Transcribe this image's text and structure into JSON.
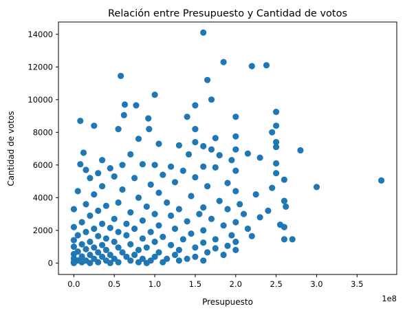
{
  "chart_data": {
    "type": "scatter",
    "title": "Relación entre Presupuesto y Cantidad de votos",
    "xlabel": "Presupuesto",
    "ylabel": "Cantidad de votos",
    "x_offset_label": "1e8",
    "xlim": [
      -0.19,
      3.99
    ],
    "ylim": [
      -700,
      14750
    ],
    "x_ticks": [
      0,
      0.5,
      1.0,
      1.5,
      2.0,
      2.5,
      3.0,
      3.5
    ],
    "x_tick_labels": [
      "0.0",
      "0.5",
      "1.0",
      "1.5",
      "2.0",
      "2.5",
      "3.0",
      "3.5"
    ],
    "y_ticks": [
      0,
      2000,
      4000,
      6000,
      8000,
      10000,
      12000,
      14000
    ],
    "y_tick_labels": [
      "0",
      "2000",
      "4000",
      "6000",
      "8000",
      "10000",
      "12000",
      "14000"
    ],
    "marker_color": "#1f77b4",
    "grid": false,
    "points": [
      [
        1.6,
        14100
      ],
      [
        1.85,
        12300
      ],
      [
        2.2,
        12050
      ],
      [
        2.38,
        12100
      ],
      [
        0.58,
        11450
      ],
      [
        1.65,
        11200
      ],
      [
        1.0,
        10300
      ],
      [
        1.7,
        10000
      ],
      [
        0.63,
        9700
      ],
      [
        0.77,
        9650
      ],
      [
        1.5,
        9650
      ],
      [
        2.0,
        8950
      ],
      [
        0.62,
        9050
      ],
      [
        0.92,
        8850
      ],
      [
        2.5,
        9250
      ],
      [
        0.08,
        8700
      ],
      [
        1.4,
        8950
      ],
      [
        0.25,
        8400
      ],
      [
        2.5,
        8400
      ],
      [
        0.55,
        8200
      ],
      [
        0.93,
        8200
      ],
      [
        1.5,
        8200
      ],
      [
        2.45,
        8000
      ],
      [
        2.0,
        7750
      ],
      [
        1.75,
        7650
      ],
      [
        0.8,
        7600
      ],
      [
        1.5,
        7400
      ],
      [
        2.5,
        7400
      ],
      [
        1.05,
        7300
      ],
      [
        1.3,
        7200
      ],
      [
        1.6,
        7150
      ],
      [
        2.8,
        6900
      ],
      [
        2.0,
        6950
      ],
      [
        2.5,
        7100
      ],
      [
        1.7,
        6950
      ],
      [
        2.15,
        6700
      ],
      [
        0.12,
        6750
      ],
      [
        1.8,
        6600
      ],
      [
        0.7,
        6650
      ],
      [
        1.42,
        6650
      ],
      [
        2.3,
        6450
      ],
      [
        0.35,
        6300
      ],
      [
        1.95,
        6300
      ],
      [
        0.85,
        6050
      ],
      [
        0.6,
        6000
      ],
      [
        1.0,
        6000
      ],
      [
        0.08,
        6050
      ],
      [
        1.2,
        5900
      ],
      [
        1.6,
        5900
      ],
      [
        2.5,
        6100
      ],
      [
        0.45,
        5800
      ],
      [
        1.75,
        5850
      ],
      [
        0.15,
        5700
      ],
      [
        1.35,
        5650
      ],
      [
        2.0,
        5650
      ],
      [
        0.3,
        5500
      ],
      [
        1.1,
        5400
      ],
      [
        0.5,
        5300
      ],
      [
        2.5,
        5500
      ],
      [
        0.75,
        5200
      ],
      [
        1.5,
        5250
      ],
      [
        0.2,
        5200
      ],
      [
        1.9,
        4900
      ],
      [
        2.6,
        5100
      ],
      [
        0.95,
        4800
      ],
      [
        1.25,
        4950
      ],
      [
        0.35,
        4700
      ],
      [
        1.65,
        4700
      ],
      [
        2.45,
        4600
      ],
      [
        3.8,
        5050
      ],
      [
        3.0,
        4650
      ],
      [
        0.05,
        4400
      ],
      [
        0.6,
        4500
      ],
      [
        1.05,
        4300
      ],
      [
        2.0,
        4400
      ],
      [
        0.25,
        4200
      ],
      [
        0.8,
        4000
      ],
      [
        1.45,
        4100
      ],
      [
        2.25,
        4200
      ],
      [
        2.6,
        3800
      ],
      [
        1.8,
        3800
      ],
      [
        0.15,
        3600
      ],
      [
        0.55,
        3700
      ],
      [
        1.15,
        3700
      ],
      [
        2.05,
        3600
      ],
      [
        2.62,
        3450
      ],
      [
        0.4,
        3500
      ],
      [
        0.9,
        3450
      ],
      [
        1.6,
        3400
      ],
      [
        2.4,
        3200
      ],
      [
        0.0,
        3300
      ],
      [
        0.3,
        3200
      ],
      [
        1.3,
        3300
      ],
      [
        1.9,
        3300
      ],
      [
        0.7,
        3100
      ],
      [
        1.0,
        3000
      ],
      [
        1.55,
        3000
      ],
      [
        2.1,
        3000
      ],
      [
        0.2,
        2900
      ],
      [
        1.2,
        2900
      ],
      [
        2.3,
        2800
      ],
      [
        0.5,
        2700
      ],
      [
        1.7,
        2700
      ],
      [
        0.85,
        2600
      ],
      [
        1.4,
        2550
      ],
      [
        2.0,
        2500
      ],
      [
        0.1,
        2500
      ],
      [
        0.35,
        2400
      ],
      [
        0.65,
        2400
      ],
      [
        2.55,
        2350
      ],
      [
        1.05,
        2300
      ],
      [
        1.85,
        2300
      ],
      [
        2.6,
        2200
      ],
      [
        0.0,
        2200
      ],
      [
        0.25,
        2100
      ],
      [
        0.45,
        2150
      ],
      [
        0.75,
        2100
      ],
      [
        1.25,
        2100
      ],
      [
        1.6,
        2000
      ],
      [
        2.15,
        2100
      ],
      [
        0.15,
        1900
      ],
      [
        0.55,
        1900
      ],
      [
        0.95,
        1900
      ],
      [
        1.45,
        1800
      ],
      [
        1.95,
        1700
      ],
      [
        0.05,
        1700
      ],
      [
        0.3,
        1650
      ],
      [
        0.65,
        1700
      ],
      [
        1.1,
        1600
      ],
      [
        2.2,
        1650
      ],
      [
        0.4,
        1500
      ],
      [
        0.85,
        1500
      ],
      [
        1.35,
        1450
      ],
      [
        1.75,
        1450
      ],
      [
        2.6,
        1450
      ],
      [
        2.7,
        1450
      ],
      [
        0.0,
        1400
      ],
      [
        0.2,
        1300
      ],
      [
        0.5,
        1300
      ],
      [
        1.0,
        1300
      ],
      [
        1.6,
        1250
      ],
      [
        2.0,
        1300
      ],
      [
        0.1,
        1150
      ],
      [
        0.35,
        1100
      ],
      [
        0.7,
        1150
      ],
      [
        1.2,
        1100
      ],
      [
        1.9,
        1050
      ],
      [
        0.0,
        1000
      ],
      [
        0.25,
        950
      ],
      [
        0.55,
        950
      ],
      [
        0.9,
        950
      ],
      [
        1.5,
        950
      ],
      [
        1.75,
        900
      ],
      [
        0.15,
        850
      ],
      [
        0.4,
        800
      ],
      [
        0.8,
        800
      ],
      [
        1.3,
        800
      ],
      [
        2.0,
        800
      ],
      [
        0.05,
        700
      ],
      [
        0.3,
        650
      ],
      [
        0.6,
        650
      ],
      [
        1.05,
        650
      ],
      [
        1.65,
        650
      ],
      [
        0.0,
        550
      ],
      [
        0.2,
        500
      ],
      [
        0.45,
        500
      ],
      [
        0.75,
        500
      ],
      [
        1.25,
        500
      ],
      [
        1.85,
        500
      ],
      [
        0.1,
        400
      ],
      [
        0.35,
        380
      ],
      [
        0.65,
        380
      ],
      [
        1.0,
        380
      ],
      [
        1.5,
        380
      ],
      [
        0.0,
        280
      ],
      [
        0.25,
        260
      ],
      [
        0.5,
        260
      ],
      [
        0.85,
        260
      ],
      [
        1.15,
        260
      ],
      [
        1.4,
        260
      ],
      [
        0.05,
        160
      ],
      [
        0.15,
        150
      ],
      [
        0.4,
        150
      ],
      [
        0.7,
        150
      ],
      [
        0.95,
        150
      ],
      [
        1.3,
        150
      ],
      [
        1.6,
        150
      ],
      [
        0.0,
        60
      ],
      [
        0.1,
        50
      ],
      [
        0.3,
        50
      ],
      [
        0.55,
        50
      ],
      [
        0.8,
        50
      ],
      [
        1.1,
        50
      ],
      [
        0.0,
        0
      ],
      [
        0.2,
        0
      ],
      [
        0.45,
        0
      ],
      [
        0.9,
        0
      ]
    ]
  }
}
